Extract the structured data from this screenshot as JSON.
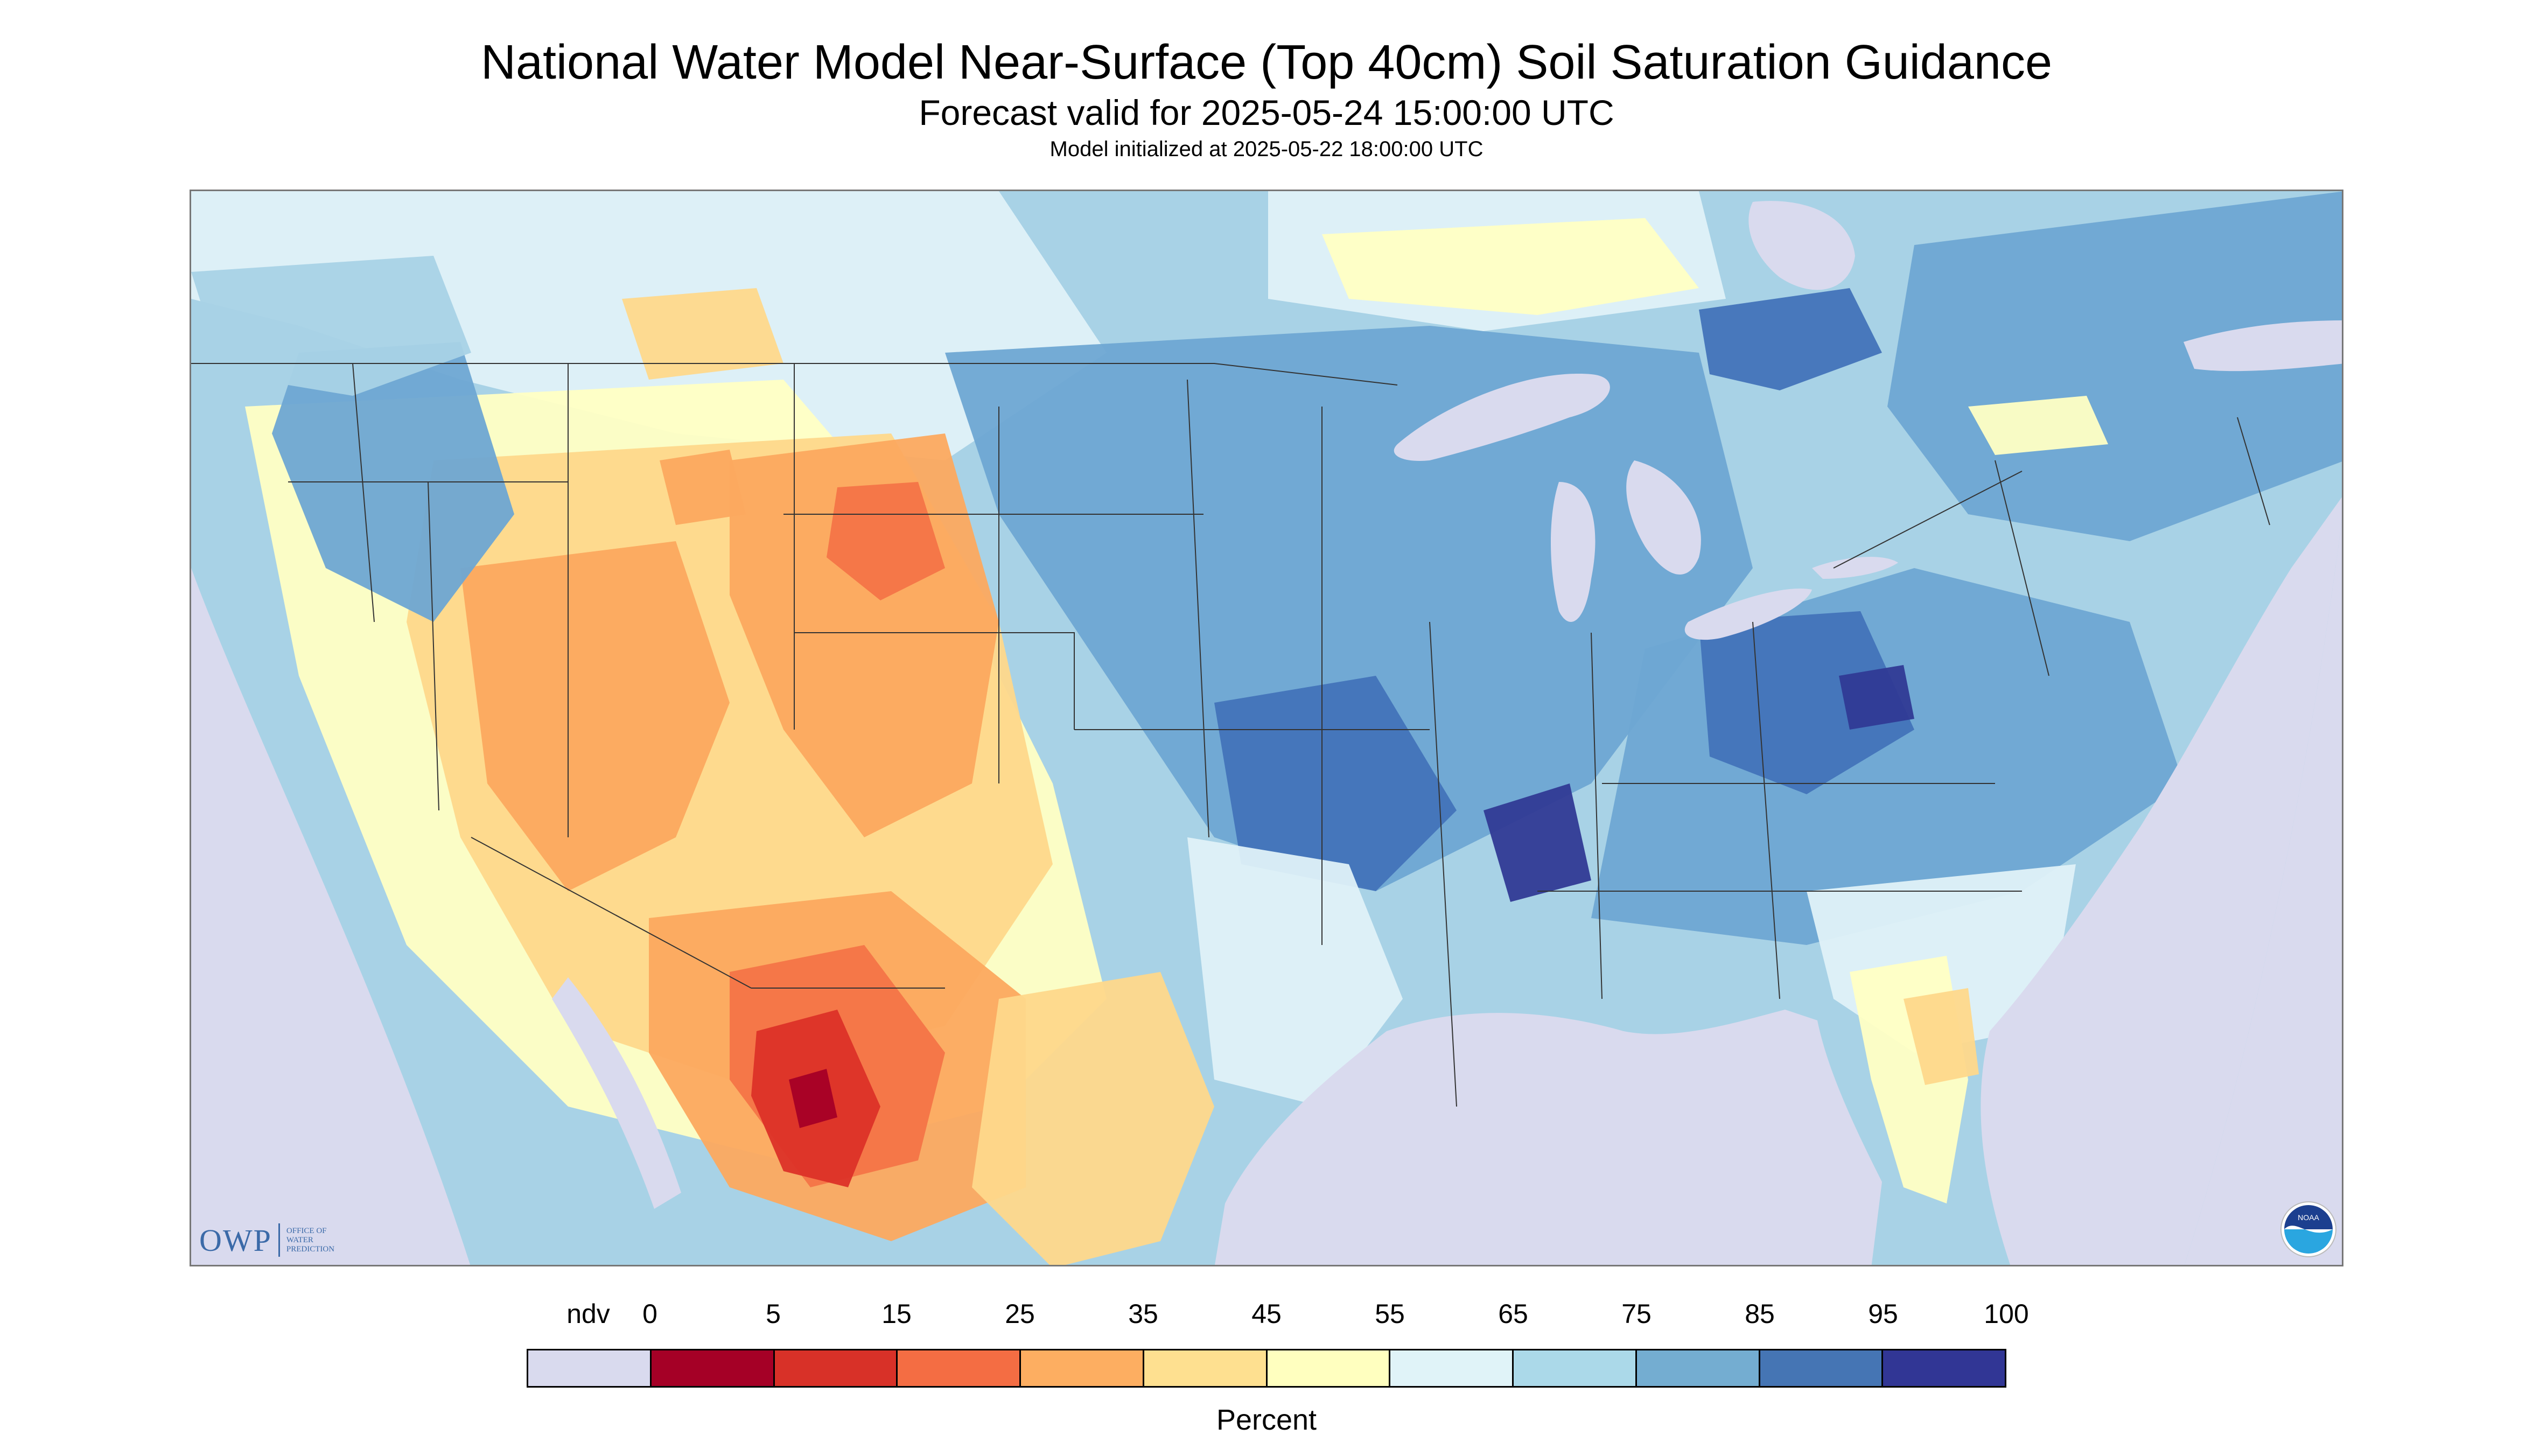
{
  "header": {
    "title": "National Water Model Near-Surface (Top 40cm) Soil Saturation Guidance",
    "forecast_valid": "Forecast valid for 2025-05-24 15:00:00 UTC",
    "model_initialized": "Model initialized at 2025-05-22 18:00:00 UTC"
  },
  "map": {
    "background_outside_projection": "#d9daee",
    "water_color": "#d9daee",
    "boundary_color": "#333333",
    "region_fills": [
      {
        "class": "85",
        "color": "#6ea7d3"
      },
      {
        "class": "75",
        "color": "#a8d2e6"
      },
      {
        "class": "65",
        "color": "#dff1f8"
      },
      {
        "class": "55",
        "color": "#ffffc4"
      },
      {
        "class": "45",
        "color": "#fed88b"
      },
      {
        "class": "35",
        "color": "#fca95f"
      },
      {
        "class": "25",
        "color": "#f47447"
      },
      {
        "class": "15",
        "color": "#dc3128"
      },
      {
        "class": "5",
        "color": "#a50026"
      },
      {
        "class": "95",
        "color": "#4273b9"
      },
      {
        "class": "100",
        "color": "#303a95"
      }
    ]
  },
  "logos": {
    "owp": {
      "letters": "OWP",
      "line1": "OFFICE OF",
      "line2": "WATER",
      "line3": "PREDICTION"
    },
    "noaa": {
      "text": "NOAA",
      "icon": "noaa-logo-icon"
    }
  },
  "legend": {
    "labels": [
      "ndv",
      "0",
      "5",
      "15",
      "25",
      "35",
      "45",
      "55",
      "65",
      "75",
      "85",
      "95",
      "100"
    ],
    "colors": [
      "#d9daee",
      "#a50026",
      "#d83128",
      "#f46d43",
      "#fdae61",
      "#fee090",
      "#ffffbf",
      "#e0f3f8",
      "#abd9e9",
      "#74add1",
      "#4575b4",
      "#313695"
    ],
    "unit": "Percent"
  }
}
